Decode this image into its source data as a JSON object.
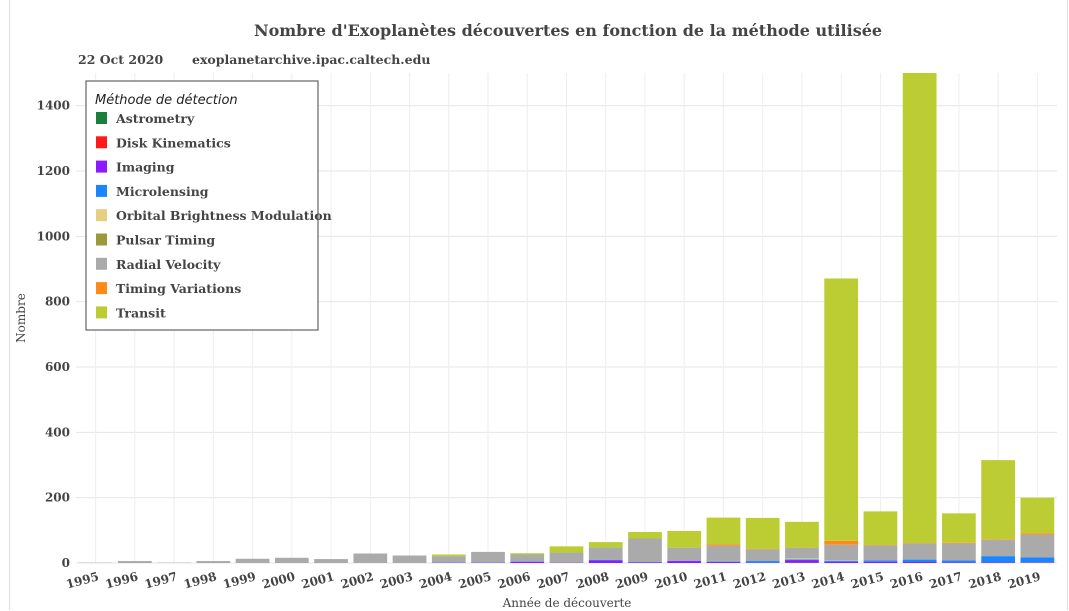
{
  "chart_data": {
    "type": "bar",
    "stacked": true,
    "title": "Nombre d'Exoplanètes découvertes en fonction de la méthode utilisée",
    "date": "22 Oct 2020",
    "source": "exoplanetarchive.ipac.caltech.edu",
    "xlabel": "Année de découverte",
    "ylabel": "Nombre",
    "ylim": [
      0,
      1500
    ],
    "yticks": [
      0,
      200,
      400,
      600,
      800,
      1000,
      1200,
      1400
    ],
    "grid": true,
    "legend_title": "Méthode de détection",
    "legend_position": "top-left",
    "categories": [
      "1995",
      "1996",
      "1997",
      "1998",
      "1999",
      "2000",
      "2001",
      "2002",
      "2003",
      "2004",
      "2005",
      "2006",
      "2007",
      "2008",
      "2009",
      "2010",
      "2011",
      "2012",
      "2013",
      "2014",
      "2015",
      "2016",
      "2017",
      "2018",
      "2019"
    ],
    "series": [
      {
        "name": "Astrometry",
        "color": "#1a7f3c",
        "values": [
          0,
          0,
          0,
          0,
          0,
          0,
          0,
          0,
          0,
          0,
          0,
          0,
          0,
          0,
          0,
          0,
          0,
          0,
          1,
          0,
          0,
          0,
          0,
          0,
          0
        ]
      },
      {
        "name": "Disk Kinematics",
        "color": "#ff1a1a",
        "values": [
          0,
          0,
          0,
          0,
          0,
          0,
          0,
          0,
          0,
          0,
          0,
          0,
          0,
          0,
          0,
          0,
          0,
          0,
          0,
          0,
          0,
          0,
          0,
          0,
          1
        ]
      },
      {
        "name": "Imaging",
        "color": "#8a1aff",
        "values": [
          0,
          0,
          0,
          0,
          0,
          0,
          0,
          0,
          0,
          1,
          1,
          4,
          1,
          8,
          2,
          6,
          3,
          1,
          8,
          4,
          4,
          3,
          2,
          2,
          1
        ]
      },
      {
        "name": "Microlensing",
        "color": "#1a85ff",
        "values": [
          0,
          0,
          0,
          0,
          0,
          0,
          0,
          0,
          0,
          1,
          1,
          1,
          0,
          2,
          1,
          1,
          2,
          5,
          2,
          3,
          4,
          8,
          6,
          19,
          15
        ]
      },
      {
        "name": "Orbital Brightness Modulation",
        "color": "#e8cf80",
        "values": [
          0,
          0,
          0,
          0,
          0,
          0,
          0,
          0,
          0,
          0,
          0,
          0,
          0,
          0,
          0,
          0,
          1,
          0,
          3,
          1,
          0,
          1,
          0,
          0,
          0
        ]
      },
      {
        "name": "Pulsar Timing",
        "color": "#9a9a3a",
        "values": [
          0,
          0,
          0,
          0,
          0,
          0,
          0,
          0,
          0,
          0,
          0,
          0,
          0,
          0,
          0,
          0,
          1,
          0,
          0,
          0,
          0,
          0,
          0,
          0,
          0
        ]
      },
      {
        "name": "Radial Velocity",
        "color": "#aaaaaa",
        "values": [
          1,
          6,
          1,
          6,
          13,
          16,
          12,
          29,
          23,
          19,
          32,
          21,
          31,
          38,
          72,
          40,
          46,
          36,
          32,
          48,
          46,
          48,
          52,
          50,
          70
        ]
      },
      {
        "name": "Timing Variations",
        "color": "#ff8a1a",
        "values": [
          0,
          0,
          0,
          0,
          0,
          0,
          0,
          0,
          0,
          0,
          0,
          0,
          0,
          0,
          0,
          0,
          4,
          1,
          1,
          12,
          1,
          1,
          2,
          2,
          4
        ]
      },
      {
        "name": "Transit",
        "color": "#bccd33",
        "values": [
          0,
          0,
          0,
          0,
          0,
          0,
          0,
          0,
          0,
          5,
          0,
          4,
          19,
          16,
          20,
          51,
          82,
          95,
          79,
          803,
          103,
          1440,
          90,
          242,
          109
        ]
      }
    ]
  }
}
